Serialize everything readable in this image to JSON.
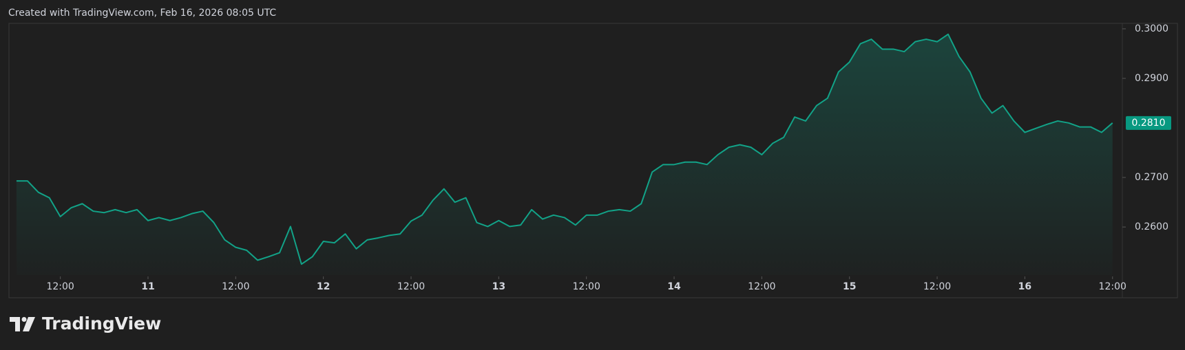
{
  "chart_data": {
    "type": "area-line",
    "title": "Created with TradingView.com, Feb 16, 2026 08:05 UTC",
    "color": "#12a388",
    "x": [
      10.25,
      10.3125,
      10.375,
      10.4375,
      10.5,
      10.5625,
      10.625,
      10.6875,
      10.75,
      10.8125,
      10.875,
      10.9375,
      11,
      11.0625,
      11.125,
      11.1875,
      11.25,
      11.3125,
      11.375,
      11.4375,
      11.5,
      11.5625,
      11.625,
      11.6875,
      11.75,
      11.8125,
      11.875,
      11.9375,
      12,
      12.0625,
      12.125,
      12.1875,
      12.25,
      12.3125,
      12.375,
      12.4375,
      12.5,
      12.5625,
      12.625,
      12.6875,
      12.75,
      12.8125,
      12.875,
      12.9375,
      13,
      13.0625,
      13.125,
      13.1875,
      13.25,
      13.3125,
      13.375,
      13.4375,
      13.5,
      13.5625,
      13.625,
      13.6875,
      13.75,
      13.8125,
      13.875,
      13.9375,
      14,
      14.0625,
      14.125,
      14.1875,
      14.25,
      14.3125,
      14.375,
      14.4375,
      14.5,
      14.5625,
      14.625,
      14.6875,
      14.75,
      14.8125,
      14.875,
      14.9375,
      15,
      15.0625,
      15.125,
      15.1875,
      15.25,
      15.3125,
      15.375,
      15.4375,
      15.5,
      15.5625,
      15.625,
      15.6875,
      15.75,
      15.8125,
      15.875,
      15.9375,
      16,
      16.0625,
      16.125,
      16.1875,
      16.25,
      16.3125,
      16.375,
      16.4375,
      16.5
    ],
    "values": [
      0.2693,
      0.2693,
      0.267,
      0.2659,
      0.2621,
      0.2639,
      0.2647,
      0.2632,
      0.2629,
      0.2635,
      0.2629,
      0.2635,
      0.2613,
      0.2619,
      0.2613,
      0.2619,
      0.2627,
      0.2632,
      0.2609,
      0.2574,
      0.2559,
      0.2553,
      0.2533,
      0.254,
      0.2548,
      0.2601,
      0.2525,
      0.254,
      0.2571,
      0.2568,
      0.2586,
      0.2556,
      0.2574,
      0.2578,
      0.2583,
      0.2586,
      0.2612,
      0.2624,
      0.2654,
      0.2677,
      0.265,
      0.2659,
      0.2609,
      0.2601,
      0.2613,
      0.2601,
      0.2604,
      0.2635,
      0.2616,
      0.2624,
      0.2619,
      0.2604,
      0.2624,
      0.2624,
      0.2632,
      0.2635,
      0.2632,
      0.2647,
      0.2711,
      0.2726,
      0.2726,
      0.2731,
      0.2731,
      0.2726,
      0.2746,
      0.2761,
      0.2766,
      0.2761,
      0.2746,
      0.2769,
      0.2781,
      0.2822,
      0.2814,
      0.2845,
      0.286,
      0.2913,
      0.2933,
      0.297,
      0.2979,
      0.2959,
      0.2959,
      0.2954,
      0.2974,
      0.2979,
      0.2974,
      0.2989,
      0.2944,
      0.2913,
      0.286,
      0.283,
      0.2845,
      0.2814,
      0.2791,
      0.2799,
      0.2807,
      0.2814,
      0.281,
      0.2802,
      0.2802,
      0.2791,
      0.281
    ],
    "xlim": [
      10.207,
      16.556
    ],
    "xticks": [
      {
        "value": 10.5,
        "label": "12:00"
      },
      11,
      {
        "value": 11.5,
        "label": "12:00"
      },
      12,
      {
        "value": 12.5,
        "label": "12:00"
      },
      13,
      {
        "value": 13.5,
        "label": "12:00"
      },
      14,
      {
        "value": 14.5,
        "label": "12:00"
      },
      15,
      {
        "value": 15.5,
        "label": "12:00"
      },
      16,
      {
        "value": 16.5,
        "label": "12:00"
      }
    ],
    "ylim": [
      0.2503,
      0.3011
    ],
    "yticks": [
      {
        "value": 0.26,
        "label": "0.2600"
      },
      {
        "value": 0.27,
        "label": "0.2700"
      },
      {
        "value": 0.29,
        "label": "0.2900"
      },
      {
        "value": 0.3,
        "label": "0.3000"
      }
    ],
    "last_price": {
      "value": 0.281,
      "label": "0.2810"
    },
    "grid": false
  },
  "logo_text": "TradingView"
}
